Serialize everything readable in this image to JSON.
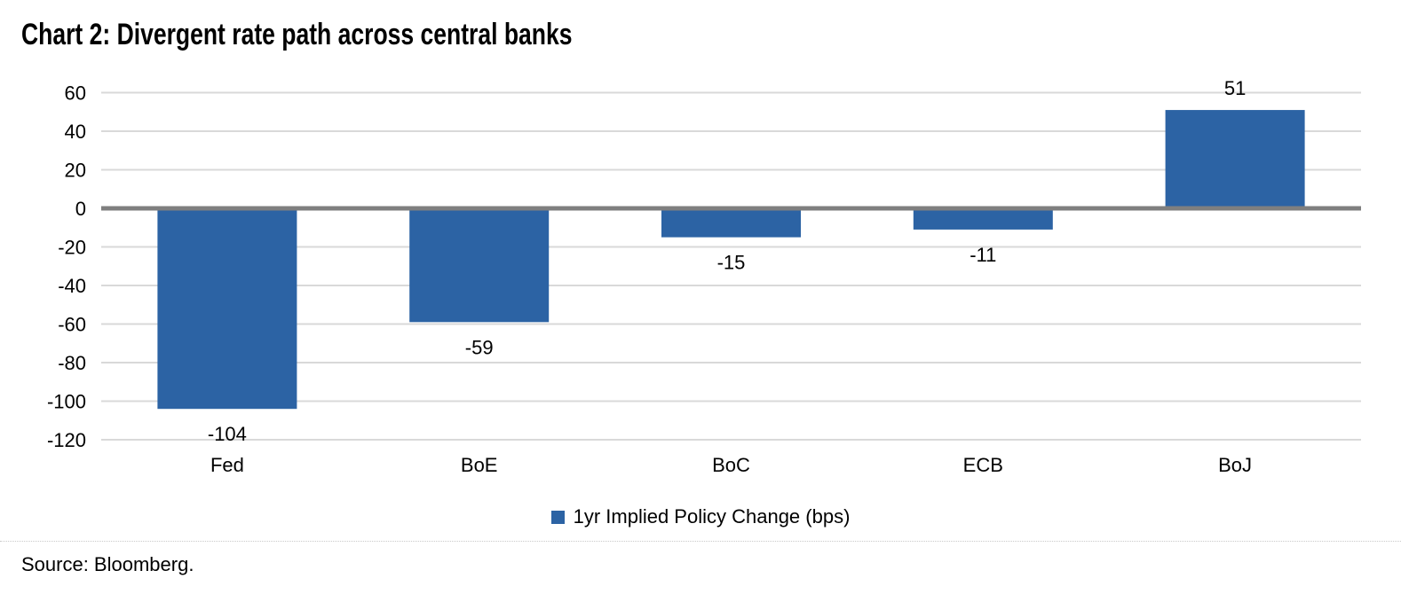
{
  "title": "Chart 2: Divergent rate path across central banks",
  "source": "Source: Bloomberg.",
  "legend": {
    "label": "1yr Implied Policy Change (bps)",
    "marker": "legend-square-icon"
  },
  "colors": {
    "bar": "#2C63A4",
    "gridline": "#D9D9D9",
    "zero_line": "#7F7F7F",
    "text": "#000000"
  },
  "chart_data": {
    "type": "bar",
    "title": "Chart 2: Divergent rate path across central banks",
    "categories": [
      "Fed",
      "BoE",
      "BoC",
      "ECB",
      "BoJ"
    ],
    "values": [
      -104,
      -59,
      -15,
      -11,
      51
    ],
    "series": [
      {
        "name": "1yr Implied Policy Change (bps)",
        "values": [
          -104,
          -59,
          -15,
          -11,
          51
        ]
      }
    ],
    "data_labels": [
      "-104",
      "-59",
      "-15",
      "-11",
      "51"
    ],
    "xlabel": "",
    "ylabel": "",
    "ylim": [
      -120,
      60
    ],
    "yticks": [
      60,
      40,
      20,
      0,
      -20,
      -40,
      -60,
      -80,
      -100,
      -120
    ],
    "grid": true,
    "legend_position": "bottom-center",
    "source": "Source: Bloomberg."
  }
}
